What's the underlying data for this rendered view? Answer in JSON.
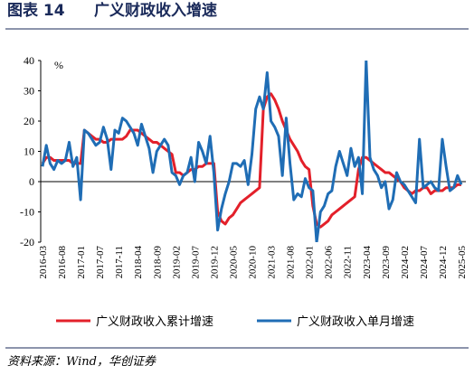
{
  "chart_data": {
    "type": "line",
    "figure_label": "图表 14",
    "title": "广义财政收入增速",
    "y_unit": "%",
    "source": "资料来源：Wind，华创证券",
    "categories": [
      "2016-03",
      null,
      null,
      null,
      null,
      "2016-08",
      null,
      null,
      null,
      null,
      "2017-01",
      null,
      null,
      null,
      null,
      "2017-07",
      null,
      null,
      null,
      null,
      "2017-11",
      null,
      null,
      null,
      null,
      "2018-04",
      null,
      null,
      null,
      null,
      "2018-09",
      null,
      null,
      null,
      null,
      "2019-02",
      null,
      null,
      null,
      null,
      "2019-07",
      null,
      null,
      null,
      null,
      "2019-12",
      null,
      null,
      null,
      null,
      "2020-05",
      null,
      null,
      null,
      null,
      "2020-10",
      null,
      null,
      null,
      null,
      "2021-03",
      null,
      null,
      null,
      null,
      "2021-08",
      null,
      null,
      null,
      null,
      "2022-01",
      null,
      null,
      null,
      null,
      "2022-06",
      null,
      null,
      null,
      null,
      "2022-11",
      null,
      null,
      null,
      null,
      "2023-04",
      null,
      null,
      null,
      null,
      "2023-09",
      null,
      null,
      null,
      null,
      "2024-02",
      null,
      null,
      null,
      null,
      "2024-07",
      null,
      null,
      null,
      null,
      "2024-12",
      null,
      null,
      null,
      null,
      "2025-05"
    ],
    "series": [
      {
        "name": "广义财政收入累计增速",
        "color": "#e3202a",
        "width": 3,
        "values": [
          6,
          8,
          8,
          7,
          7,
          7,
          7,
          7,
          6,
          6,
          6,
          17,
          16,
          15,
          14,
          14,
          13,
          13,
          14,
          14,
          14,
          14,
          15,
          17,
          17,
          17,
          16,
          15,
          14,
          13,
          13,
          12,
          11,
          10,
          9,
          3,
          3,
          2,
          3,
          4,
          4,
          5,
          5,
          6,
          6,
          6,
          -10,
          -13,
          -14,
          -12,
          -11,
          -9,
          -7,
          -6,
          -5,
          -4,
          -3,
          -2,
          24,
          28,
          29,
          27,
          24,
          20,
          17,
          14,
          12,
          10,
          7,
          5,
          4,
          -8,
          -14,
          -15,
          -14,
          -13,
          -11,
          -10,
          -9,
          -8,
          -7,
          -6,
          -5,
          4,
          8,
          8,
          7,
          6,
          5,
          4,
          3,
          3,
          2,
          1,
          0,
          -2,
          -3,
          -4,
          -3,
          -3,
          -2,
          -2,
          -4,
          -3,
          -3,
          -3,
          -2,
          -2,
          -2,
          -1,
          -1
        ]
      },
      {
        "name": "广义财政收入单月增速",
        "color": "#1f6db5",
        "width": 3,
        "values": [
          5,
          12,
          6,
          4,
          7,
          6,
          7,
          13,
          5,
          8,
          -6,
          17,
          16,
          14,
          12,
          13,
          18,
          14,
          4,
          17,
          16,
          21,
          20,
          18,
          16,
          12,
          19,
          15,
          11,
          3,
          10,
          12,
          14,
          12,
          3,
          2,
          -1,
          2,
          3,
          8,
          0,
          13,
          10,
          6,
          15,
          3,
          -16,
          -9,
          -4,
          0,
          6,
          6,
          5,
          7,
          -1,
          9,
          24,
          28,
          24,
          36,
          20,
          18,
          15,
          2,
          21,
          6,
          -6,
          -4,
          -5,
          1,
          -2,
          -3,
          -20,
          -10,
          -8,
          -4,
          -3,
          5,
          10,
          6,
          2,
          11,
          5,
          8,
          -4,
          40,
          8,
          4,
          2,
          -2,
          0,
          -9,
          -6,
          3,
          0,
          -1,
          -3,
          -5,
          -7,
          14,
          -2,
          -1,
          0,
          -2,
          -3,
          14,
          5,
          -3,
          -2,
          2,
          -1
        ]
      }
    ],
    "ylim": [
      -20,
      40
    ],
    "yticks": [
      -20,
      -10,
      0,
      10,
      20,
      30,
      40
    ]
  }
}
